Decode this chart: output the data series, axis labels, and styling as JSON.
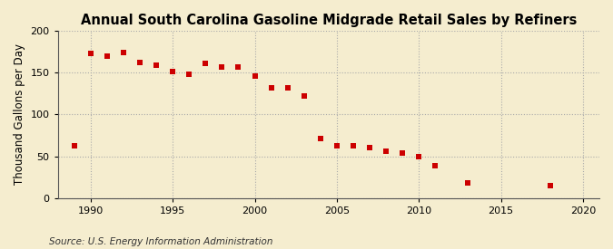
{
  "title": "Annual South Carolina Gasoline Midgrade Retail Sales by Refiners",
  "ylabel": "Thousand Gallons per Day",
  "source": "Source: U.S. Energy Information Administration",
  "background_color": "#f5edcf",
  "plot_bg_color": "#f5edcf",
  "marker_color": "#cc0000",
  "years": [
    1989,
    1990,
    1991,
    1992,
    1993,
    1994,
    1995,
    1996,
    1997,
    1998,
    1999,
    2000,
    2001,
    2002,
    2003,
    2004,
    2005,
    2006,
    2007,
    2008,
    2009,
    2010,
    2011,
    2013,
    2018
  ],
  "values": [
    63,
    173,
    170,
    174,
    162,
    159,
    151,
    148,
    161,
    157,
    157,
    146,
    132,
    132,
    122,
    71,
    63,
    63,
    61,
    56,
    54,
    50,
    39,
    18,
    15
  ],
  "xlim": [
    1988,
    2021
  ],
  "ylim": [
    0,
    200
  ],
  "xticks": [
    1990,
    1995,
    2000,
    2005,
    2010,
    2015,
    2020
  ],
  "yticks": [
    0,
    50,
    100,
    150,
    200
  ],
  "title_fontsize": 10.5,
  "label_fontsize": 8.5,
  "tick_fontsize": 8,
  "source_fontsize": 7.5,
  "grid_color": "#aaaaaa",
  "grid_style": ":"
}
